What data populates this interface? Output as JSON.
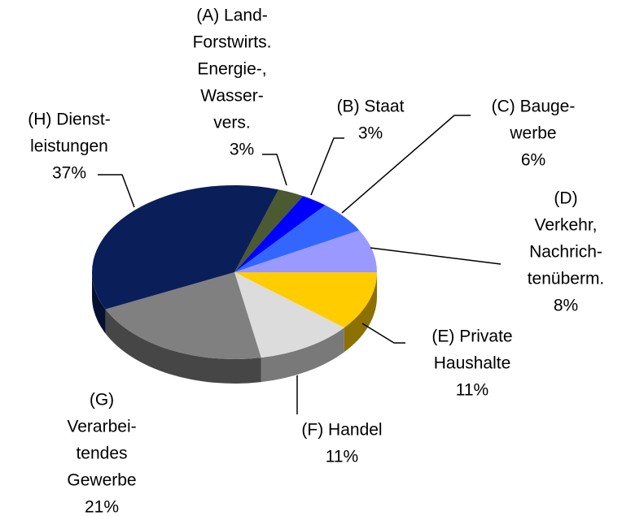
{
  "chart_data": {
    "type": "pie3d",
    "categories": [
      [
        "(A) Land-",
        "Forstwirts.",
        "Energie-,",
        "Wasser-",
        "vers."
      ],
      [
        "(B) Staat"
      ],
      [
        "(C) Bauge-",
        "werbe"
      ],
      [
        "(D)",
        "Verkehr,",
        "Nachrich-",
        "tenüberm."
      ],
      [
        "(E) Private",
        "Haushalte"
      ],
      [
        "(F) Handel"
      ],
      [
        "(G)",
        "Verarbei-",
        "tendes",
        "Gewerbe"
      ],
      [
        "(H) Dienst-",
        "leistungen"
      ]
    ],
    "values": [
      3,
      3,
      6,
      8,
      11,
      11,
      21,
      37
    ],
    "value_labels": [
      "3%",
      "3%",
      "6%",
      "8%",
      "11%",
      "11%",
      "21%",
      "37%"
    ],
    "colors": [
      "#4b5a30",
      "#0000ff",
      "#3366ff",
      "#9999ff",
      "#ffcc00",
      "#dcdcdc",
      "#808080",
      "#0a1e5a"
    ]
  }
}
